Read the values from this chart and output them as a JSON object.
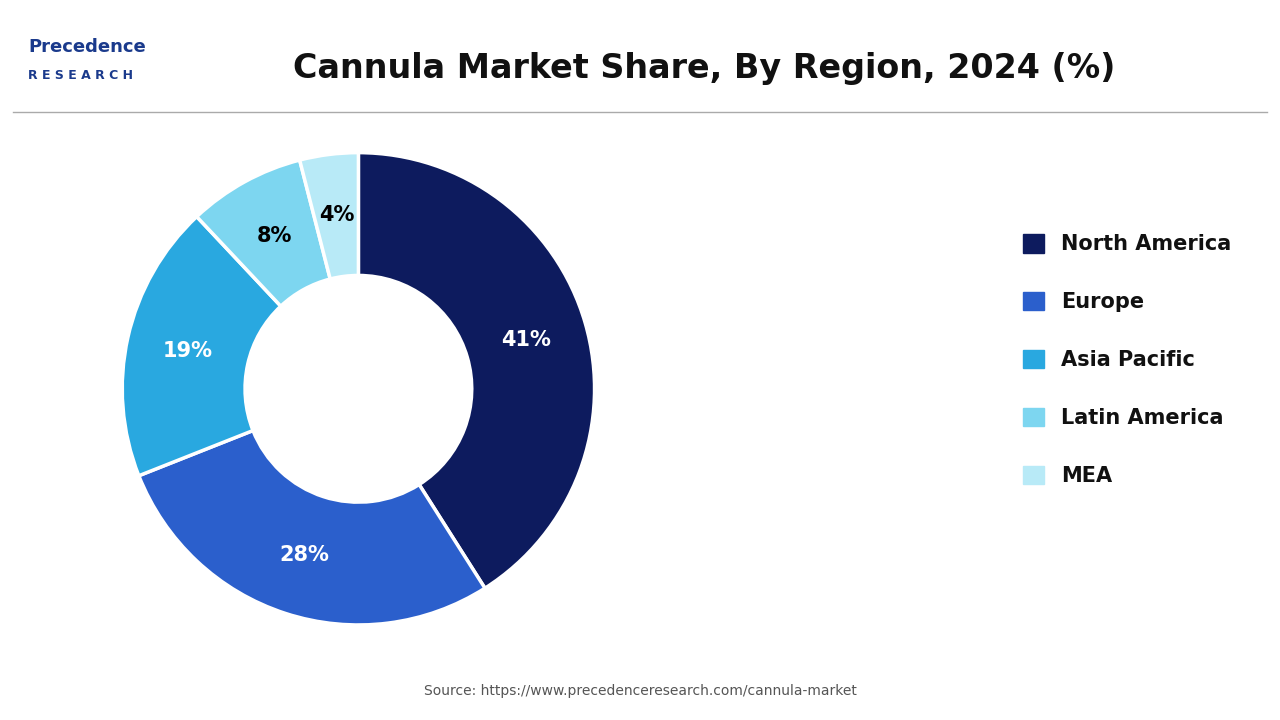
{
  "title": "Cannula Market Share, By Region, 2024 (%)",
  "values": [
    41,
    28,
    19,
    8,
    4
  ],
  "labels": [
    "North America",
    "Europe",
    "Asia Pacific",
    "Latin America",
    "MEA"
  ],
  "colors": [
    "#0d1b5e",
    "#2b5fcc",
    "#29a8e0",
    "#7dd6f0",
    "#b8eaf7"
  ],
  "pct_labels": [
    "41%",
    "28%",
    "19%",
    "8%",
    "4%"
  ],
  "pct_colors": [
    "white",
    "white",
    "white",
    "black",
    "black"
  ],
  "source_text": "Source: https://www.precedenceresearch.com/cannula-market",
  "background_color": "#ffffff",
  "legend_fontsize": 15,
  "title_fontsize": 24
}
